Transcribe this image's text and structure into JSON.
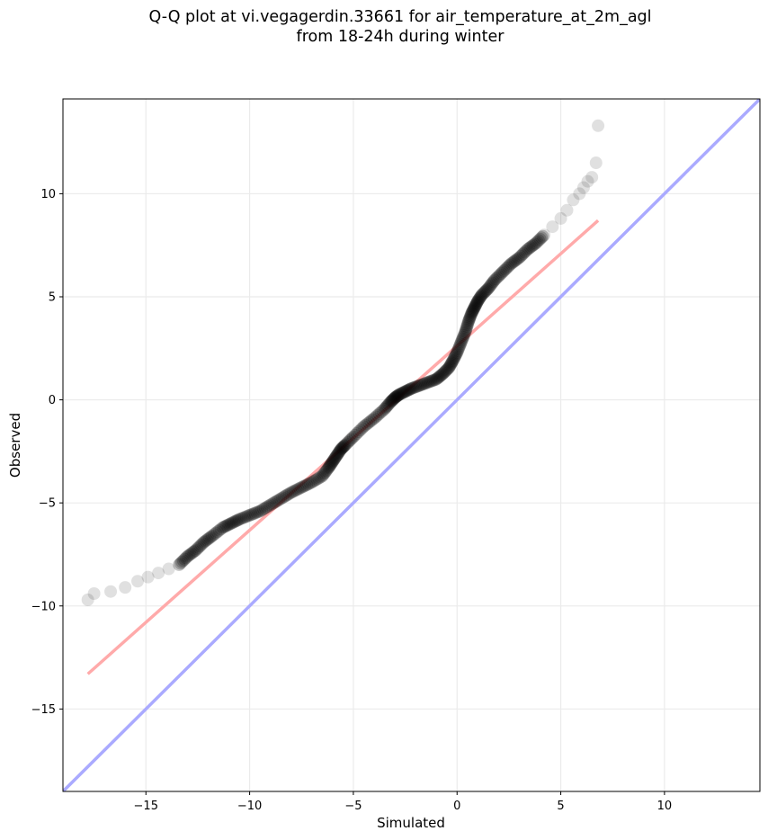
{
  "chart_data": {
    "type": "scatter",
    "title_line1": "Q-Q plot at vi.vegagerdin.33661 for air_temperature_at_2m_agl",
    "title_line2": "from 18-24h during winter",
    "xlabel": "Simulated",
    "ylabel": "Observed",
    "xlim": [
      -19.0,
      14.6
    ],
    "ylim": [
      -19.0,
      14.6
    ],
    "xticks": [
      -15,
      -10,
      -5,
      0,
      5,
      10
    ],
    "yticks": [
      -15,
      -10,
      -5,
      0,
      5,
      10
    ],
    "grid": true,
    "identity_line": {
      "color": "#aaaaff",
      "x": [
        -19.0,
        14.6
      ],
      "y": [
        -19.0,
        14.6
      ]
    },
    "fit_line": {
      "color": "#ffaaaa",
      "x": [
        -17.8,
        6.8
      ],
      "y": [
        -13.3,
        8.7
      ]
    },
    "quantile_curve": {
      "color": "#000000",
      "x": [
        -17.8,
        -17.5,
        -16.7,
        -16.0,
        -15.4,
        -14.9,
        -14.4,
        -13.9,
        -13.4,
        -13.0,
        -12.6,
        -12.2,
        -11.8,
        -11.3,
        -10.9,
        -10.5,
        -10.0,
        -9.5,
        -9.0,
        -8.5,
        -8.0,
        -7.5,
        -7.0,
        -6.5,
        -6.2,
        -6.0,
        -5.8,
        -5.6,
        -5.4,
        -5.0,
        -4.5,
        -4.0,
        -3.5,
        -3.2,
        -3.0,
        -2.8,
        -2.5,
        -2.2,
        -1.8,
        -1.4,
        -1.0,
        -0.7,
        -0.4,
        -0.2,
        0.0,
        0.2,
        0.4,
        0.55,
        0.7,
        0.85,
        1.0,
        1.2,
        1.5,
        1.8,
        2.2,
        2.6,
        3.0,
        3.4,
        3.8,
        4.2,
        4.6,
        5.0,
        5.3,
        5.6,
        5.9,
        6.1,
        6.3,
        6.5,
        6.7,
        6.8
      ],
      "y": [
        -9.7,
        -9.4,
        -9.3,
        -9.1,
        -8.8,
        -8.6,
        -8.4,
        -8.2,
        -8.0,
        -7.6,
        -7.3,
        -6.9,
        -6.6,
        -6.2,
        -6.0,
        -5.8,
        -5.6,
        -5.4,
        -5.1,
        -4.8,
        -4.5,
        -4.25,
        -4.0,
        -3.7,
        -3.3,
        -3.0,
        -2.7,
        -2.4,
        -2.2,
        -1.8,
        -1.3,
        -0.9,
        -0.45,
        -0.1,
        0.1,
        0.25,
        0.4,
        0.55,
        0.7,
        0.85,
        1.0,
        1.25,
        1.55,
        1.9,
        2.3,
        2.8,
        3.3,
        3.8,
        4.2,
        4.5,
        4.8,
        5.1,
        5.4,
        5.8,
        6.2,
        6.6,
        6.9,
        7.3,
        7.6,
        8.0,
        8.4,
        8.8,
        9.2,
        9.7,
        10.0,
        10.3,
        10.6,
        10.8,
        11.5,
        13.3
      ]
    }
  }
}
